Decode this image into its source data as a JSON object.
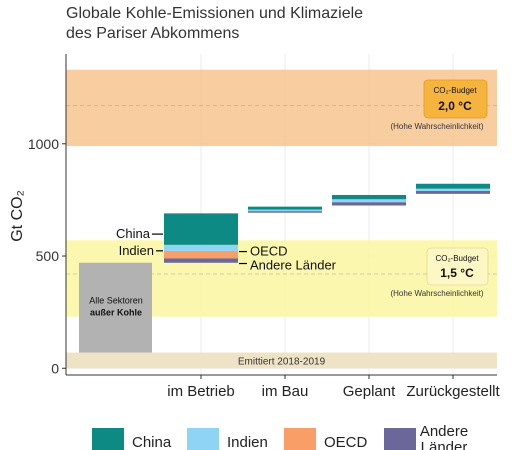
{
  "title": [
    "Globale Kohle-Emissionen und Klimaziele",
    "des Pariser Abkommens"
  ],
  "chart_data": {
    "type": "bar",
    "ylabel": "Gt CO₂",
    "ylim": [
      -30,
      1400
    ],
    "yticks": [
      0,
      500,
      1000
    ],
    "grid": true,
    "categories": [
      "im Betrieb",
      "im Bau",
      "Geplant",
      "Zurückgestellt"
    ],
    "series_colors": {
      "China": "#0e8a84",
      "Indien": "#8fd3f5",
      "OECD": "#f89e66",
      "Andere Länder": "#6b6899"
    },
    "base": {
      "label_lines": [
        "Alle Sektoren",
        "außer Kohle"
      ],
      "bottom": 70,
      "top": 470,
      "color": "#b2b2b2"
    },
    "emitted": {
      "label": "Emittiert 2018-2019",
      "from": 0,
      "to": 70,
      "color": "#eee3c4"
    },
    "waterfall": [
      {
        "category": "im Betrieb",
        "segments": [
          {
            "name": "Andere Länder",
            "from": 470,
            "to": 490
          },
          {
            "name": "OECD",
            "from": 490,
            "to": 523
          },
          {
            "name": "Indien",
            "from": 523,
            "to": 550
          },
          {
            "name": "China",
            "from": 550,
            "to": 690
          }
        ]
      },
      {
        "category": "im Bau",
        "segments": [
          {
            "name": "Andere Länder",
            "from": 693,
            "to": 700
          },
          {
            "name": "Indien",
            "from": 700,
            "to": 707
          },
          {
            "name": "China",
            "from": 707,
            "to": 720
          }
        ]
      },
      {
        "category": "Geplant",
        "segments": [
          {
            "name": "Andere Länder",
            "from": 725,
            "to": 740
          },
          {
            "name": "Indien",
            "from": 740,
            "to": 753
          },
          {
            "name": "China",
            "from": 753,
            "to": 772
          }
        ]
      },
      {
        "category": "Zurückgestellt",
        "segments": [
          {
            "name": "Andere Länder",
            "from": 777,
            "to": 790
          },
          {
            "name": "Indien",
            "from": 790,
            "to": 800
          },
          {
            "name": "China",
            "from": 800,
            "to": 822
          }
        ]
      }
    ],
    "segment_labels": [
      {
        "text": "China",
        "series": "China"
      },
      {
        "text": "Indien",
        "series": "Indien"
      },
      {
        "text": "OECD",
        "series": "OECD"
      },
      {
        "text": "Andere Länder",
        "series": "Andere Länder"
      }
    ],
    "budgets": [
      {
        "label": "CO₂-Budget",
        "value_label": "2,0 °C",
        "note": "(Hohe Wahrscheinlichkeit)",
        "from": 990,
        "to": 1330,
        "mid": 1170,
        "band_color": "#f7c58f",
        "box_color": "#f5b43d"
      },
      {
        "label": "CO₂-Budget",
        "value_label": "1,5 °C",
        "note": "(Hohe Wahrscheinlichkeit)",
        "from": 230,
        "to": 570,
        "mid": 420,
        "band_color": "#fbf6a0",
        "box_color": "#fcf7c4"
      }
    ],
    "legend": [
      "China",
      "Indien",
      "OECD",
      "Andere Länder"
    ],
    "legend_placement": "bottom"
  }
}
